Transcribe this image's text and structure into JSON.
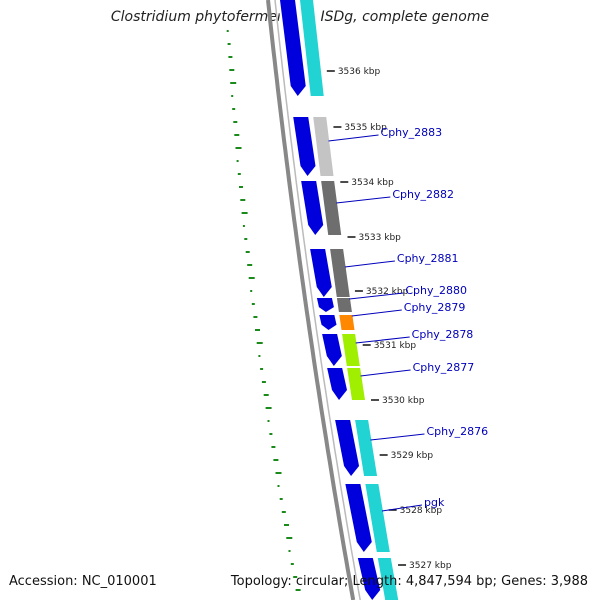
{
  "title": "Clostridium phytofermentans ISDg, complete genome",
  "footer": {
    "accession": "Accession: NC_010001",
    "summary": "Topology: circular; Length: 4,847,594 bp; Genes: 3,988"
  },
  "colors": {
    "cds_forward": "#0000dd",
    "backbone": "#888888",
    "gc_skew": "#1a8a1a",
    "gene_label": "#0000bb",
    "gray_light": "#c4c4c4",
    "gray_dark": "#6e6e6e",
    "cyan": "#22d3d3",
    "orange": "#ff8800",
    "lime": "#a0ee00"
  },
  "ticks": [
    {
      "label": "3536 kbp"
    },
    {
      "label": "3535 kbp"
    },
    {
      "label": "3534 kbp"
    },
    {
      "label": "3533 kbp"
    },
    {
      "label": "3532 kbp"
    },
    {
      "label": "3531 kbp"
    },
    {
      "label": "3530 kbp"
    },
    {
      "label": "3529 kbp"
    },
    {
      "label": "3528 kbp"
    },
    {
      "label": "3527 kbp"
    }
  ],
  "genes": [
    {
      "label": "Cphy_2883",
      "color": "gray_light"
    },
    {
      "label": "Cphy_2882",
      "color": "gray_dark"
    },
    {
      "label": "Cphy_2881",
      "color": "gray_dark"
    },
    {
      "label": "Cphy_2880",
      "color": "gray_dark"
    },
    {
      "label": "Cphy_2879",
      "color": "orange"
    },
    {
      "label": "Cphy_2878",
      "color": "lime"
    },
    {
      "label": "Cphy_2877",
      "color": "lime"
    },
    {
      "label": "Cphy_2876",
      "color": "cyan"
    },
    {
      "label": "pgk",
      "color": "cyan"
    }
  ]
}
